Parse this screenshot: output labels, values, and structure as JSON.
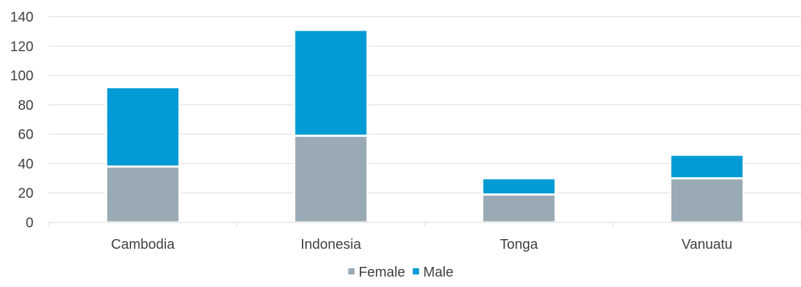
{
  "chart_data": {
    "type": "bar",
    "stacked": true,
    "title": "",
    "xlabel": "",
    "ylabel": "",
    "categories": [
      "Cambodia",
      "Indonesia",
      "Tonga",
      "Vanuatu"
    ],
    "series": [
      {
        "name": "Female",
        "color": "#99aab5",
        "values": [
          38,
          59,
          19,
          30
        ]
      },
      {
        "name": "Male",
        "color": "#039bd5",
        "values": [
          54,
          72,
          11,
          16
        ]
      }
    ],
    "ylim": [
      0,
      140
    ],
    "yticks": [
      0,
      20,
      40,
      60,
      80,
      100,
      120,
      140
    ],
    "grid": true,
    "legend": "bottom"
  }
}
